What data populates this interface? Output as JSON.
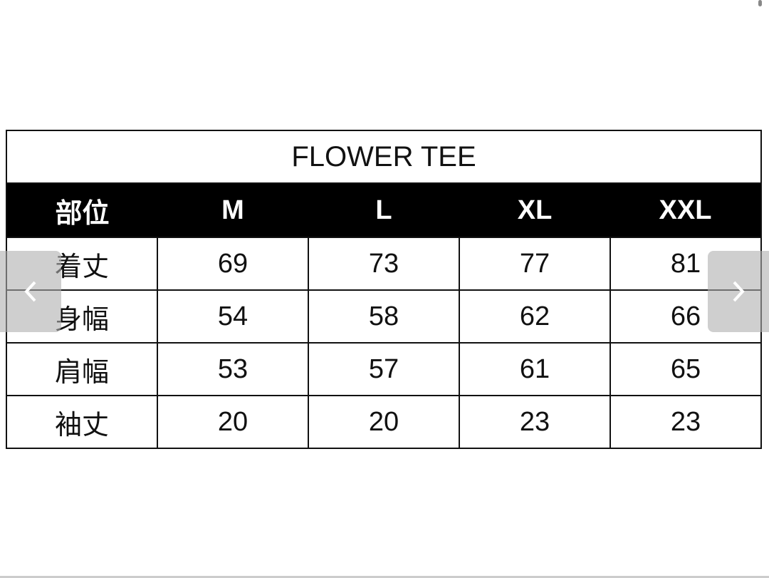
{
  "table": {
    "title": "FLOWER TEE",
    "headers": [
      "部位",
      "M",
      "L",
      "XL",
      "XXL"
    ],
    "rows": [
      [
        "着丈",
        "69",
        "73",
        "77",
        "81"
      ],
      [
        "身幅",
        "54",
        "58",
        "62",
        "66"
      ],
      [
        "肩幅",
        "53",
        "57",
        "61",
        "65"
      ],
      [
        "袖丈",
        "20",
        "20",
        "23",
        "23"
      ]
    ]
  },
  "carousel": {
    "prev_icon": "chevron-left-icon",
    "next_icon": "chevron-right-icon"
  }
}
